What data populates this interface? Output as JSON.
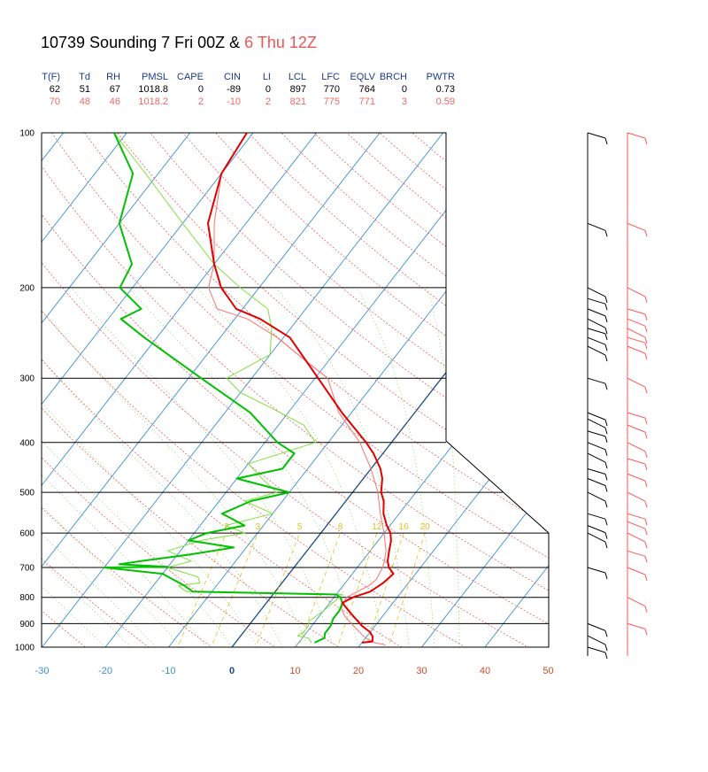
{
  "title": {
    "main": "10739 Sounding 7 Fri 00Z &",
    "second": "6 Thu 12Z"
  },
  "indices": {
    "headers": [
      "T(F)",
      "Td",
      "RH",
      "PMSL",
      "CAPE",
      "CIN",
      "LI",
      "LCL",
      "LFC",
      "EQLV",
      "BRCH",
      "PWTR"
    ],
    "rows": [
      [
        "62",
        "51",
        "67",
        "1018.8",
        "0",
        "-89",
        "0",
        "897",
        "770",
        "764",
        "0",
        "0.73"
      ],
      [
        "70",
        "48",
        "46",
        "1018.2",
        "2",
        "-10",
        "2",
        "821",
        "775",
        "771",
        "3",
        "0.59"
      ]
    ]
  },
  "colors": {
    "run1_temp": "#e00000",
    "run1_dew": "#00c000",
    "run2_temp": "#ff7070",
    "run2_dew": "#80e040",
    "isotherm": "#3b8fd0",
    "dry_adiabat": "#e05050",
    "moist_adiabat": "#66cc44",
    "mixing_ratio": "#e0c020",
    "freezing": "#1a4a8a"
  },
  "chart_data": {
    "type": "skew-t log-p",
    "xlabel": "",
    "ylabel": "",
    "pressure_ticks": [
      100,
      200,
      300,
      400,
      500,
      600,
      700,
      800,
      900,
      1000
    ],
    "pressure_tick_labels": [
      "100",
      "200",
      "300",
      "400",
      "500",
      "600",
      "700",
      "800",
      "900",
      "1000"
    ],
    "temperature_ticks": [
      -30,
      -20,
      -10,
      0,
      10,
      20,
      30,
      40,
      50
    ],
    "temperature_tick_labels": [
      "-30",
      "-20",
      "-10",
      "0",
      "10",
      "20",
      "30",
      "40",
      "50"
    ],
    "mixing_ratio_labels": [
      "2",
      "3",
      "5",
      "8",
      "12",
      "16",
      "20"
    ],
    "xlim": [
      -30,
      50
    ],
    "ylim": [
      1000,
      100
    ],
    "series": [
      {
        "name": "10739 Sounding 7 Fri 00Z",
        "variable": "temperature",
        "p": [
          980,
          975,
          955,
          935,
          910,
          880,
          850,
          820,
          800,
          780,
          750,
          720,
          700,
          680,
          650,
          620,
          600,
          580,
          550,
          520,
          500,
          470,
          450,
          420,
          400,
          350,
          300,
          250,
          230,
          220,
          200,
          180,
          150,
          120,
          100
        ],
        "t": [
          20,
          21.5,
          21,
          20,
          18,
          16,
          14,
          12,
          13,
          15,
          16,
          16.5,
          15,
          14,
          13,
          12,
          11,
          9.5,
          7.5,
          6,
          4.5,
          3,
          1.5,
          -1.5,
          -4,
          -11.5,
          -19.5,
          -29,
          -36,
          -41,
          -46,
          -50,
          -56,
          -60,
          -61
        ]
      },
      {
        "name": "10739 Sounding 7 Fri 00Z",
        "variable": "dewpoint",
        "p": [
          980,
          960,
          940,
          910,
          880,
          850,
          820,
          800,
          790,
          780,
          760,
          720,
          700,
          698,
          690,
          680,
          660,
          640,
          620,
          600,
          580,
          550,
          520,
          500,
          470,
          450,
          420,
          400,
          350,
          300,
          250,
          230,
          220,
          200,
          180,
          150,
          120,
          100
        ],
        "t": [
          12.5,
          13.5,
          13,
          13,
          12.5,
          12.5,
          12,
          11,
          10,
          -13,
          -15,
          -20,
          -30,
          -20,
          -28,
          -25,
          -18,
          -12,
          -20,
          -18,
          -13,
          -18,
          -15,
          -10,
          -20,
          -14,
          -14,
          -18,
          -26,
          -38,
          -52,
          -58,
          -56,
          -62,
          -63,
          -70,
          -74,
          -82
        ]
      },
      {
        "name": "6 Thu 12Z",
        "variable": "temperature",
        "p": [
          990,
          980,
          960,
          930,
          900,
          870,
          840,
          800,
          780,
          760,
          740,
          700,
          680,
          650,
          600,
          550,
          500,
          450,
          400,
          350,
          300,
          280,
          250,
          230,
          220,
          200,
          180,
          150,
          120,
          100
        ],
        "t": [
          24,
          22,
          20,
          18,
          16,
          14,
          12.5,
          12,
          13,
          14,
          14.5,
          14,
          13.5,
          12.5,
          10,
          7,
          4,
          0,
          -5,
          -12,
          -18,
          -23,
          -31,
          -38,
          -44,
          -48,
          -50,
          -55,
          -60,
          -61
        ]
      },
      {
        "name": "6 Thu 12Z",
        "variable": "dewpoint",
        "p": [
          980,
          960,
          950,
          930,
          910,
          890,
          870,
          850,
          820,
          790,
          780,
          760,
          750,
          730,
          700,
          680,
          650,
          620,
          600,
          580,
          550,
          520,
          500,
          470,
          440,
          400,
          370,
          340,
          320,
          300,
          270,
          240,
          220,
          200,
          180,
          150,
          120,
          100
        ],
        "t": [
          12,
          11,
          9,
          9.5,
          9.5,
          9,
          9.5,
          10,
          10.5,
          11,
          -14,
          -16,
          -13,
          -14,
          -20,
          -17,
          -22,
          -18,
          -12,
          -16,
          -10,
          -16,
          -12,
          -16,
          -20,
          -12,
          -16,
          -24,
          -30,
          -34,
          -30,
          -33,
          -36,
          -43,
          -50,
          -60,
          -72,
          -82
        ]
      }
    ],
    "wind_barbs": {
      "run1_pressures": [
        100,
        150,
        200,
        210,
        220,
        230,
        240,
        250,
        260,
        300,
        350,
        360,
        380,
        400,
        420,
        450,
        470,
        500,
        550,
        580,
        600,
        700,
        900,
        950,
        1000
      ],
      "run2_pressures": [
        100,
        150,
        200,
        220,
        230,
        240,
        250,
        260,
        300,
        350,
        370,
        400,
        430,
        460,
        500,
        550,
        570,
        600,
        650,
        700,
        800,
        900
      ]
    }
  }
}
